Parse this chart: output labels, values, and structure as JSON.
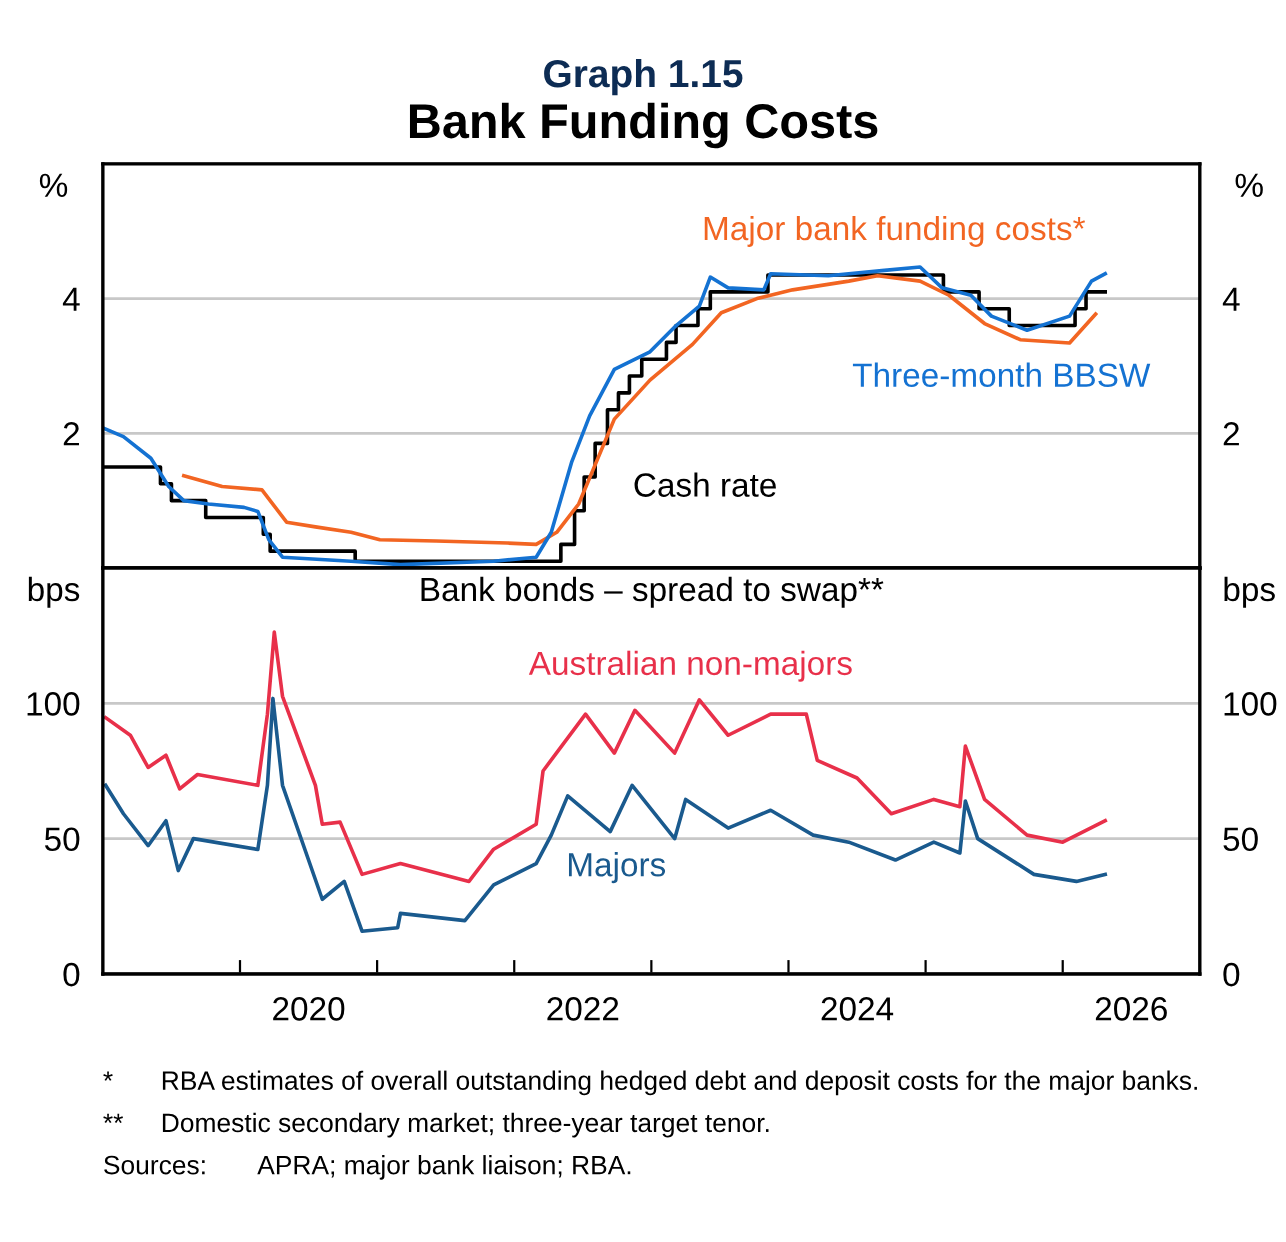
{
  "chart_data": [
    {
      "type": "line",
      "title": "Bank Funding Costs",
      "subtitle": "Graph 1.15",
      "ylabel": "%",
      "y2label": "%",
      "xlim": [
        2019,
        2027
      ],
      "ylim": [
        0,
        6
      ],
      "yticks": [
        2,
        4
      ],
      "y2lim": [
        0,
        6
      ],
      "y2ticks": [
        2,
        4
      ],
      "grid": "y",
      "tick_labels": "y",
      "series": [
        {
          "name": "Cash rate",
          "type": "step",
          "color": "#000000",
          "x": [
            2019.0,
            2019.42,
            2019.5,
            2019.75,
            2020.17,
            2020.22,
            2020.84,
            2022.34,
            2022.44,
            2022.51,
            2022.59,
            2022.68,
            2022.76,
            2022.84,
            2022.93,
            2023.11,
            2023.18,
            2023.34,
            2023.43,
            2023.85,
            2025.13,
            2025.39,
            2025.61,
            2026.09,
            2026.17,
            2026.31
          ],
          "values": [
            1.5,
            1.25,
            1.0,
            0.75,
            0.5,
            0.25,
            0.1,
            0.35,
            0.85,
            1.35,
            1.85,
            2.35,
            2.6,
            2.85,
            3.1,
            3.35,
            3.6,
            3.85,
            4.1,
            4.35,
            4.1,
            3.85,
            3.6,
            3.85,
            4.1,
            4.1
          ]
        },
        {
          "name": "Major bank funding costs*",
          "color": "#f26522",
          "x": [
            2019.59,
            2019.87,
            2020.16,
            2020.34,
            2020.55,
            2020.81,
            2021.02,
            2021.43,
            2021.95,
            2022.16,
            2022.31,
            2022.47,
            2022.73,
            2022.99,
            2023.3,
            2023.51,
            2023.77,
            2024.03,
            2024.44,
            2024.65,
            2024.96,
            2025.17,
            2025.43,
            2025.69,
            2026.05,
            2026.24
          ],
          "values": [
            1.37,
            1.21,
            1.16,
            0.68,
            0.61,
            0.53,
            0.42,
            0.4,
            0.37,
            0.35,
            0.53,
            0.95,
            2.21,
            2.79,
            3.32,
            3.79,
            4.0,
            4.13,
            4.26,
            4.34,
            4.26,
            4.05,
            3.63,
            3.39,
            3.34,
            3.77
          ]
        },
        {
          "name": "Three-month BBSW",
          "color": "#1472d2",
          "x": [
            2019.0,
            2019.15,
            2019.35,
            2019.48,
            2019.59,
            2019.77,
            2020.03,
            2020.13,
            2020.21,
            2020.31,
            2020.81,
            2021.17,
            2021.85,
            2022.16,
            2022.27,
            2022.42,
            2022.55,
            2022.73,
            2022.83,
            2022.99,
            2023.17,
            2023.35,
            2023.43,
            2023.56,
            2023.82,
            2023.87,
            2024.29,
            2024.7,
            2024.96,
            2025.12,
            2025.33,
            2025.48,
            2025.74,
            2026.05,
            2026.21,
            2026.31
          ],
          "values": [
            2.08,
            1.95,
            1.63,
            1.21,
            1.0,
            0.95,
            0.9,
            0.84,
            0.42,
            0.16,
            0.1,
            0.05,
            0.1,
            0.16,
            0.53,
            1.58,
            2.26,
            2.95,
            3.05,
            3.21,
            3.58,
            3.89,
            4.32,
            4.16,
            4.13,
            4.37,
            4.34,
            4.42,
            4.47,
            4.16,
            4.05,
            3.74,
            3.53,
            3.74,
            4.26,
            4.37
          ]
        }
      ]
    },
    {
      "type": "line",
      "title": "Bank bonds – spread to swap**",
      "ylabel": "bps",
      "y2label": "bps",
      "xlim": [
        2019,
        2027
      ],
      "xticks": [
        {
          "value": 2020,
          "label": null
        },
        {
          "value": 2020.5,
          "label": "2020"
        },
        {
          "value": 2021,
          "label": null
        },
        {
          "value": 2022,
          "label": null
        },
        {
          "value": 2022.5,
          "label": "2022"
        },
        {
          "value": 2023,
          "label": null
        },
        {
          "value": 2024,
          "label": null
        },
        {
          "value": 2024.5,
          "label": "2024"
        },
        {
          "value": 2025,
          "label": null
        },
        {
          "value": 2026,
          "label": null
        },
        {
          "value": 2026.5,
          "label": "2026"
        }
      ],
      "ylim": [
        0,
        150
      ],
      "yticks": [
        0,
        50,
        100
      ],
      "y2lim": [
        0,
        150
      ],
      "y2ticks": [
        0,
        50,
        100
      ],
      "grid": "y",
      "annotations": [
        "*\tRBA estimates of overall outstanding hedged debt and deposit costs for the major banks.",
        "**\tDomestic secondary market; three-year target tenor.",
        "Sources:\tAPRA; major bank liaison; RBA."
      ],
      "series": [
        {
          "name": "Australian non-majors",
          "color": "#e8304a",
          "x": [
            2019.02,
            2019.2,
            2019.33,
            2019.46,
            2019.56,
            2019.69,
            2020.13,
            2020.2,
            2020.25,
            2020.31,
            2020.55,
            2020.6,
            2020.73,
            2020.89,
            2021.17,
            2021.67,
            2021.85,
            2022.16,
            2022.21,
            2022.52,
            2022.73,
            2022.88,
            2023.17,
            2023.35,
            2023.56,
            2023.87,
            2024.13,
            2024.21,
            2024.5,
            2024.75,
            2025.06,
            2025.25,
            2025.29,
            2025.43,
            2025.74,
            2026.0,
            2026.31
          ],
          "values": [
            94.7,
            88.2,
            76.3,
            80.8,
            68.4,
            73.7,
            69.7,
            96,
            126.3,
            102.6,
            69.7,
            55.3,
            56.1,
            36.8,
            40.8,
            34.2,
            46.1,
            55.3,
            75,
            96,
            81.6,
            97.4,
            81.6,
            101.3,
            88.2,
            96,
            96,
            78.9,
            72.4,
            59.2,
            64.5,
            61.8,
            84.2,
            64.5,
            51.3,
            48.7,
            56.6
          ]
        },
        {
          "name": "Majors",
          "color": "#1a5a8e",
          "x": [
            2019.02,
            2019.15,
            2019.33,
            2019.46,
            2019.55,
            2019.66,
            2020.13,
            2020.2,
            2020.24,
            2020.31,
            2020.6,
            2020.76,
            2020.89,
            2021.15,
            2021.17,
            2021.64,
            2021.85,
            2022.16,
            2022.27,
            2022.39,
            2022.7,
            2022.86,
            2023.17,
            2023.25,
            2023.56,
            2023.87,
            2024.18,
            2024.44,
            2024.78,
            2025.06,
            2025.25,
            2025.29,
            2025.38,
            2025.79,
            2026.1,
            2026.31
          ],
          "values": [
            69.7,
            59.2,
            47.4,
            56.6,
            38.2,
            50,
            46,
            69.7,
            101.8,
            69.7,
            27.6,
            34.2,
            15.8,
            17.1,
            22.4,
            19.7,
            32.9,
            40.8,
            51.3,
            65.8,
            52.6,
            69.7,
            50,
            64.5,
            53.9,
            60.5,
            51.3,
            48.7,
            42.1,
            48.7,
            44.7,
            63.9,
            50,
            36.8,
            34.2,
            36.8
          ]
        }
      ]
    }
  ]
}
